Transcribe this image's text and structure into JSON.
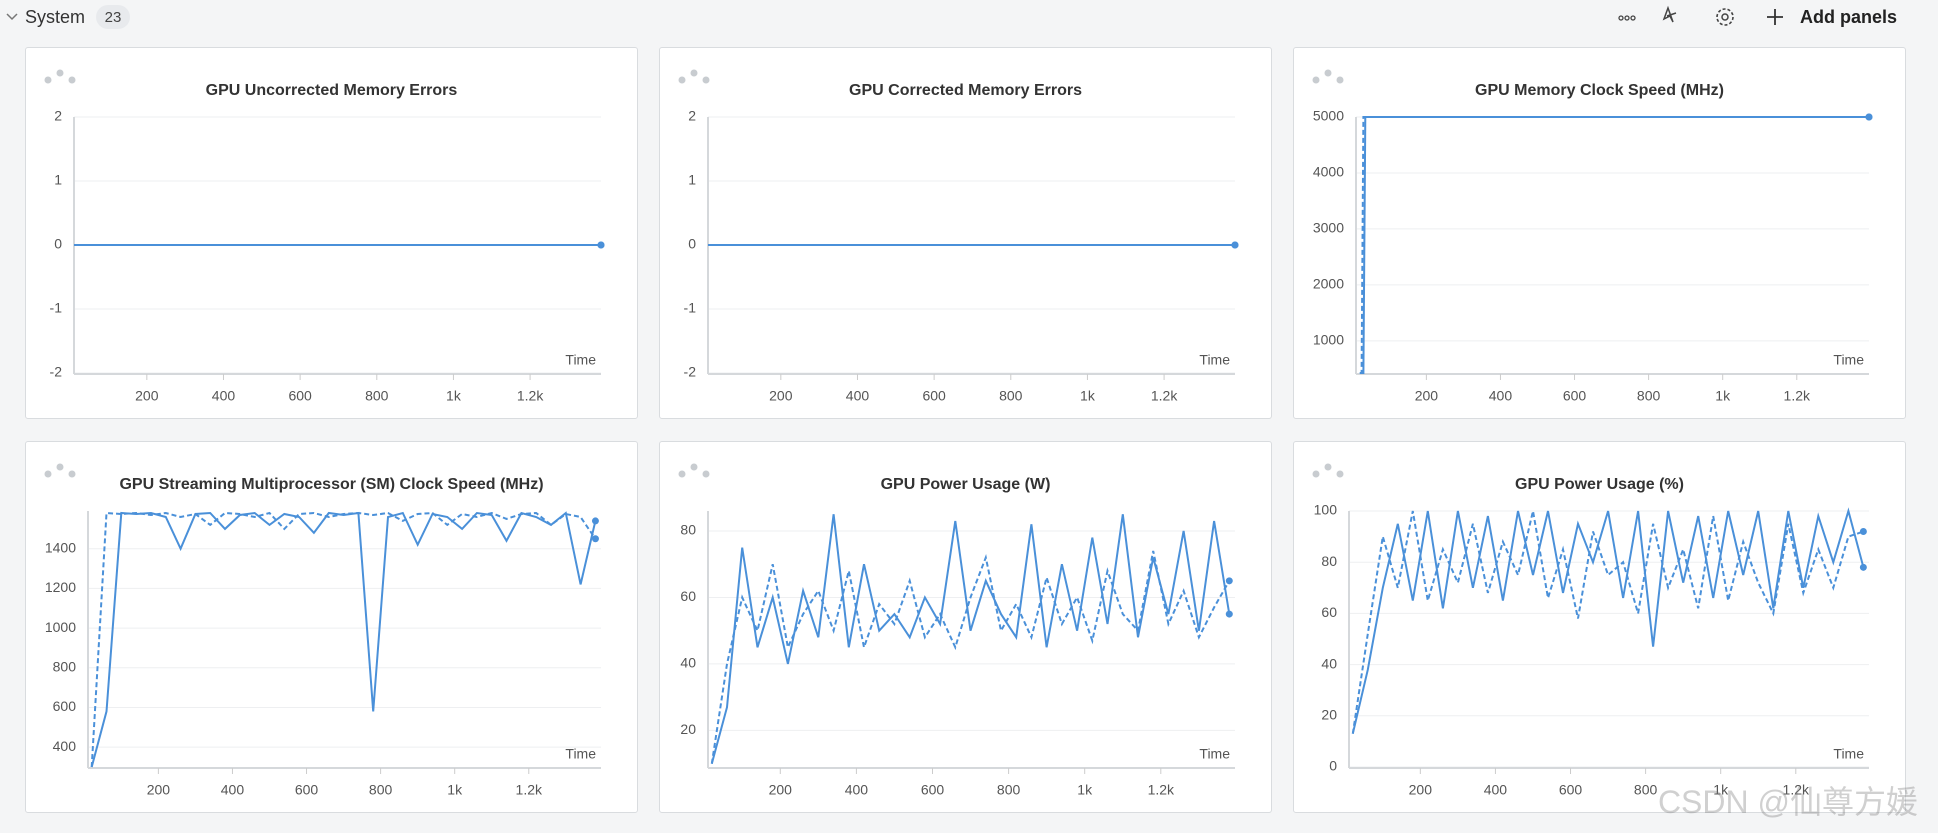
{
  "header": {
    "title": "System",
    "count": 23,
    "add_label": "Add panels"
  },
  "watermark": "CSDN @仙尊方媛",
  "chart_data": [
    {
      "type": "line",
      "title": "GPU Uncorrected Memory Errors",
      "x_label": "Time",
      "xlim": [
        10,
        1385
      ],
      "ylim": [
        -2,
        2
      ],
      "yticks": [
        -2,
        -1,
        0,
        1,
        2
      ],
      "xticks": [
        200,
        400,
        600,
        800,
        {
          "value": 1000,
          "label": "1k"
        },
        {
          "value": 1200,
          "label": "1.2k"
        }
      ],
      "grid": true,
      "series": [
        {
          "color": "#4a90d9",
          "dashed": true,
          "x": [
            10,
            1385
          ],
          "values": [
            0,
            0
          ]
        },
        {
          "color": "#4a90d9",
          "dashed": false,
          "x": [
            10,
            1385
          ],
          "values": [
            0,
            0
          ]
        }
      ]
    },
    {
      "type": "line",
      "title": "GPU Corrected Memory Errors",
      "x_label": "Time",
      "xlim": [
        10,
        1385
      ],
      "ylim": [
        -2,
        2
      ],
      "yticks": [
        -2,
        -1,
        0,
        1,
        2
      ],
      "xticks": [
        200,
        400,
        600,
        800,
        {
          "value": 1000,
          "label": "1k"
        },
        {
          "value": 1200,
          "label": "1.2k"
        }
      ],
      "grid": true,
      "series": [
        {
          "color": "#4a90d9",
          "dashed": true,
          "x": [
            10,
            1385
          ],
          "values": [
            0,
            0
          ]
        },
        {
          "color": "#4a90d9",
          "dashed": false,
          "x": [
            10,
            1385
          ],
          "values": [
            0,
            0
          ]
        }
      ]
    },
    {
      "type": "line",
      "title": "GPU Memory Clock Speed (MHz)",
      "x_label": "Time",
      "xlim": [
        10,
        1395
      ],
      "ylim": [
        425,
        5000
      ],
      "yticks": [
        1000,
        2000,
        3000,
        4000,
        5000
      ],
      "xticks": [
        200,
        400,
        600,
        800,
        {
          "value": 1000,
          "label": "1k"
        },
        {
          "value": 1200,
          "label": "1.2k"
        }
      ],
      "grid": true,
      "series": [
        {
          "color": "#4a90d9",
          "dashed": true,
          "x": [
            20,
            25,
            30,
            1395
          ],
          "values": [
            425,
            425,
            5000,
            5000
          ]
        },
        {
          "color": "#4a90d9",
          "dashed": false,
          "x": [
            25,
            30,
            35,
            1395
          ],
          "values": [
            425,
            425,
            5000,
            5000
          ]
        }
      ]
    },
    {
      "type": "line",
      "title": "GPU Streaming Multiprocessor (SM) Clock Speed (MHz)",
      "x_label": "Time",
      "xlim": [
        10,
        1395
      ],
      "ylim": [
        300,
        1590
      ],
      "yticks": [
        400,
        600,
        800,
        1000,
        1200,
        1400
      ],
      "xticks": [
        200,
        400,
        600,
        800,
        {
          "value": 1000,
          "label": "1k"
        },
        {
          "value": 1200,
          "label": "1.2k"
        }
      ],
      "grid": true,
      "series": [
        {
          "color": "#4a90d9",
          "dashed": true,
          "x": [
            20,
            60,
            100,
            140,
            180,
            220,
            260,
            300,
            340,
            380,
            420,
            460,
            500,
            540,
            580,
            620,
            660,
            700,
            740,
            780,
            820,
            860,
            900,
            940,
            980,
            1020,
            1060,
            1100,
            1140,
            1180,
            1220,
            1260,
            1300,
            1340,
            1380
          ],
          "values": [
            300,
            1580,
            1575,
            1580,
            1570,
            1580,
            1560,
            1575,
            1520,
            1580,
            1575,
            1560,
            1580,
            1500,
            1575,
            1580,
            1560,
            1575,
            1580,
            1570,
            1580,
            1540,
            1575,
            1580,
            1520,
            1575,
            1560,
            1580,
            1550,
            1575,
            1580,
            1520,
            1575,
            1560,
            1450
          ]
        },
        {
          "color": "#4a90d9",
          "dashed": false,
          "x": [
            20,
            60,
            100,
            140,
            180,
            220,
            260,
            300,
            340,
            380,
            420,
            460,
            500,
            540,
            580,
            620,
            660,
            700,
            740,
            780,
            820,
            860,
            900,
            940,
            980,
            1020,
            1060,
            1100,
            1140,
            1180,
            1220,
            1260,
            1300,
            1340,
            1380
          ],
          "values": [
            300,
            580,
            1580,
            1575,
            1580,
            1560,
            1400,
            1575,
            1580,
            1500,
            1570,
            1580,
            1520,
            1575,
            1560,
            1480,
            1580,
            1570,
            1580,
            580,
            1560,
            1580,
            1420,
            1575,
            1560,
            1500,
            1580,
            1570,
            1440,
            1580,
            1560,
            1520,
            1580,
            1220,
            1540
          ]
        }
      ]
    },
    {
      "type": "line",
      "title": "GPU Power Usage (W)",
      "x_label": "Time",
      "xlim": [
        10,
        1395
      ],
      "ylim": [
        9,
        86
      ],
      "yticks": [
        20,
        40,
        60,
        80
      ],
      "xticks": [
        200,
        400,
        600,
        800,
        {
          "value": 1000,
          "label": "1k"
        },
        {
          "value": 1200,
          "label": "1.2k"
        }
      ],
      "grid": true,
      "series": [
        {
          "color": "#4a90d9",
          "dashed": true,
          "x": [
            20,
            60,
            100,
            140,
            180,
            220,
            260,
            300,
            340,
            380,
            420,
            460,
            500,
            540,
            580,
            620,
            660,
            700,
            740,
            780,
            820,
            860,
            900,
            940,
            980,
            1020,
            1060,
            1100,
            1140,
            1180,
            1220,
            1260,
            1300,
            1340,
            1380
          ],
          "values": [
            10,
            40,
            60,
            50,
            70,
            45,
            55,
            62,
            50,
            68,
            45,
            58,
            52,
            65,
            48,
            55,
            45,
            60,
            72,
            50,
            58,
            48,
            66,
            52,
            60,
            47,
            68,
            55,
            50,
            74,
            52,
            62,
            48,
            57,
            65
          ]
        },
        {
          "color": "#4a90d9",
          "dashed": false,
          "x": [
            20,
            60,
            100,
            140,
            180,
            220,
            260,
            300,
            340,
            380,
            420,
            460,
            500,
            540,
            580,
            620,
            660,
            700,
            740,
            780,
            820,
            860,
            900,
            940,
            980,
            1020,
            1060,
            1100,
            1140,
            1180,
            1220,
            1260,
            1300,
            1340,
            1380
          ],
          "values": [
            10,
            27,
            75,
            45,
            60,
            40,
            62,
            48,
            85,
            45,
            70,
            50,
            55,
            48,
            60,
            52,
            83,
            50,
            65,
            55,
            48,
            82,
            45,
            70,
            50,
            78,
            52,
            85,
            48,
            72,
            55,
            80,
            50,
            83,
            55
          ]
        }
      ]
    },
    {
      "type": "line",
      "title": "GPU Power Usage (%)",
      "x_label": "Time",
      "xlim": [
        10,
        1395
      ],
      "ylim": [
        0,
        100
      ],
      "yticks": [
        0,
        20,
        40,
        60,
        80,
        100
      ],
      "xticks": [
        200,
        400,
        600,
        800,
        {
          "value": 1000,
          "label": "1k"
        },
        {
          "value": 1200,
          "label": "1.2k"
        }
      ],
      "grid": true,
      "series": [
        {
          "color": "#4a90d9",
          "dashed": true,
          "x": [
            20,
            60,
            100,
            140,
            180,
            220,
            260,
            300,
            340,
            380,
            420,
            460,
            500,
            540,
            580,
            620,
            660,
            700,
            740,
            780,
            820,
            860,
            900,
            940,
            980,
            1020,
            1060,
            1100,
            1140,
            1180,
            1220,
            1260,
            1300,
            1340,
            1380
          ],
          "values": [
            13,
            52,
            90,
            70,
            100,
            65,
            85,
            72,
            95,
            68,
            88,
            75,
            100,
            66,
            85,
            58,
            92,
            75,
            80,
            60,
            95,
            70,
            85,
            62,
            98,
            65,
            88,
            72,
            60,
            95,
            68,
            85,
            70,
            90,
            92
          ]
        },
        {
          "color": "#4a90d9",
          "dashed": false,
          "x": [
            20,
            60,
            100,
            140,
            180,
            220,
            260,
            300,
            340,
            380,
            420,
            460,
            500,
            540,
            580,
            620,
            660,
            700,
            740,
            780,
            820,
            860,
            900,
            940,
            980,
            1020,
            1060,
            1100,
            1140,
            1180,
            1220,
            1260,
            1300,
            1340,
            1380
          ],
          "values": [
            13,
            38,
            70,
            95,
            65,
            100,
            62,
            100,
            70,
            98,
            65,
            100,
            75,
            100,
            68,
            95,
            80,
            100,
            66,
            100,
            47,
            100,
            72,
            98,
            66,
            100,
            75,
            100,
            62,
            100,
            70,
            98,
            80,
            100,
            78
          ]
        }
      ]
    }
  ]
}
